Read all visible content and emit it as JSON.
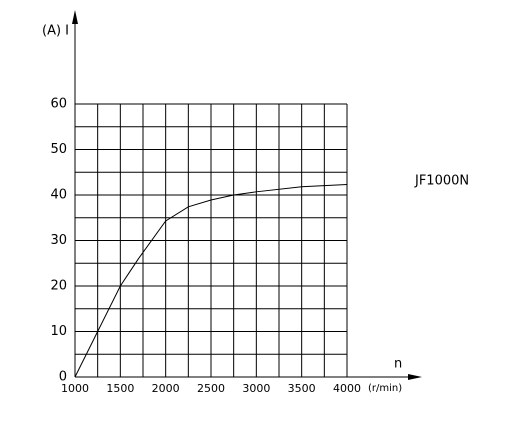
{
  "chart_data": {
    "type": "line",
    "y_label": "(A) I",
    "x_label": "n",
    "x_unit": "(r/min)",
    "annotation": "JF1000N",
    "series": [
      {
        "name": "JF1000N",
        "color": "#000000",
        "x": [
          1000,
          1250,
          1500,
          1700,
          2000,
          2250,
          2500,
          2750,
          3000,
          3500,
          4000
        ],
        "values": [
          0,
          10,
          20,
          26,
          34.3,
          37.4,
          38.9,
          40,
          40.7,
          41.8,
          42.3
        ]
      }
    ],
    "xlim": [
      1000,
      4000
    ],
    "ylim": [
      0,
      60
    ],
    "xticks": [
      1000,
      1500,
      2000,
      2500,
      3000,
      3500,
      4000
    ],
    "yticks": [
      0,
      10,
      20,
      30,
      40,
      50,
      60
    ],
    "x_gridlines": [
      1000,
      1250,
      1500,
      1750,
      2000,
      2250,
      2500,
      2750,
      3000,
      3250,
      3500,
      3750,
      4000
    ],
    "y_gridlines": [
      0,
      5,
      10,
      15,
      20,
      25,
      30,
      35,
      40,
      45,
      50,
      55,
      60
    ],
    "grid": true
  }
}
